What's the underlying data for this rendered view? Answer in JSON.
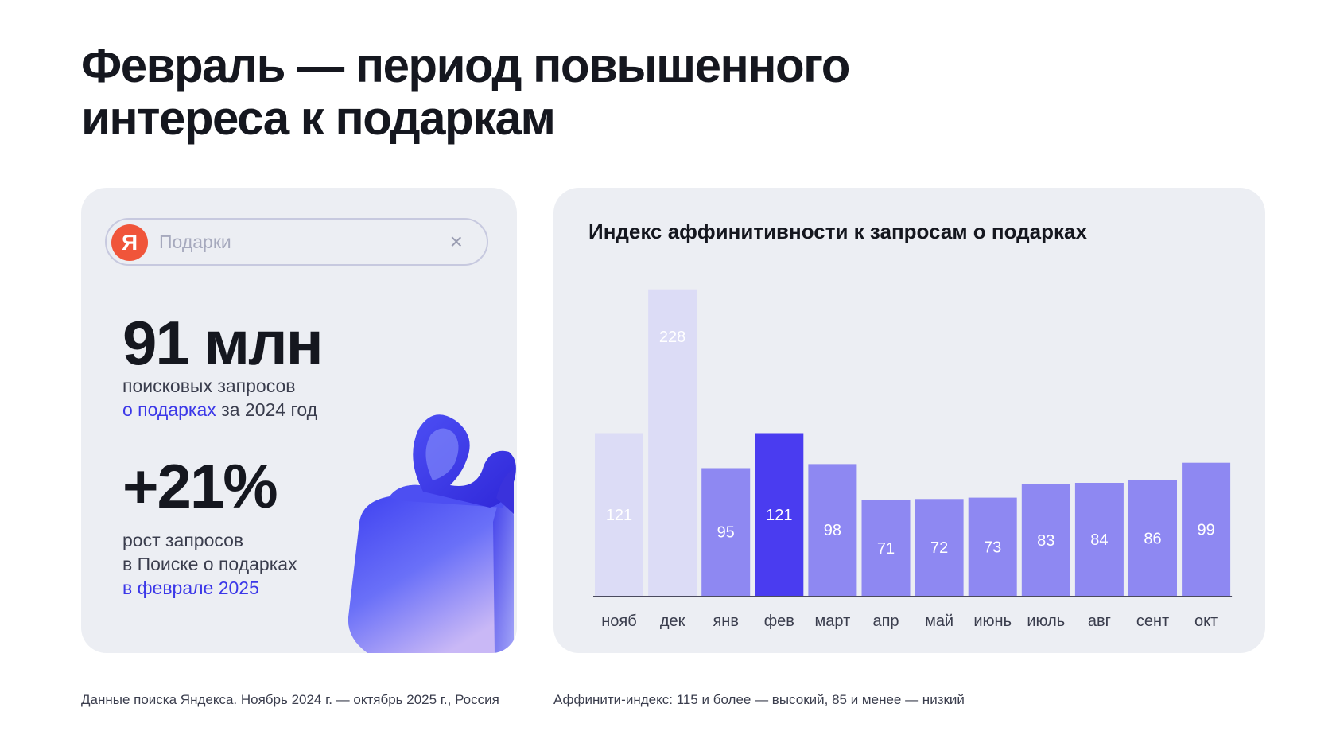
{
  "page_title": "Февраль — период повышенного интереса к подаркам",
  "search": {
    "logo": "Я",
    "query": "Подарки",
    "clear_glyph": "×"
  },
  "stats": [
    {
      "value": "91 млн",
      "line1": "поисковых запросов",
      "accent": "о подарках",
      "rest": " за 2024 год"
    },
    {
      "value": "+21%",
      "line1": "рост запросов",
      "line2": "в Поиске о подарках",
      "accent": "в феврале 2025"
    }
  ],
  "chart_data": {
    "type": "bar",
    "title": "Индекс аффинитивности к запросам о подарках",
    "categories": [
      "нояб",
      "дек",
      "янв",
      "фев",
      "март",
      "апр",
      "май",
      "июнь",
      "июль",
      "авг",
      "сент",
      "окт"
    ],
    "values": [
      121,
      228,
      95,
      121,
      98,
      71,
      72,
      73,
      83,
      84,
      86,
      99
    ],
    "highlight": "фев",
    "colors": {
      "past": "#dcdcf6",
      "current": "#8e88f2",
      "highlight": "#4a3cf0",
      "baseline": "#4a4a5e"
    }
  },
  "footnotes": {
    "left": "Данные поиска Яндекса. Ноябрь 2024 г. —  октябрь 2025 г., Россия",
    "right": "Аффинити-индекс: 115 и более — высокий, 85 и менее — низкий"
  }
}
